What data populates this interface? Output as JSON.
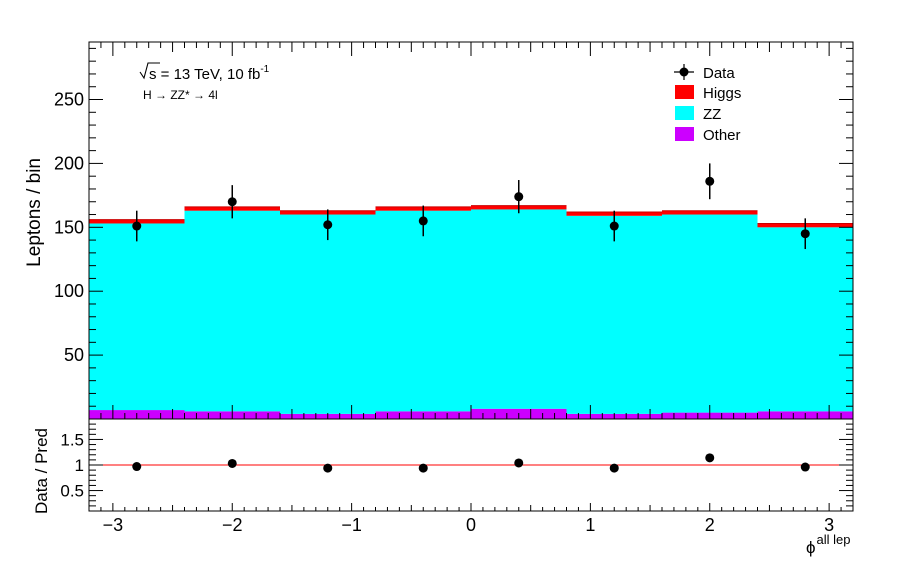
{
  "chart_data": [
    {
      "type": "bar",
      "stacked": true,
      "ylabel": "Leptons / bin",
      "ylim": [
        0,
        295
      ],
      "yticks": [
        50,
        100,
        150,
        200,
        250
      ],
      "xlim": [
        -3.2,
        3.2
      ],
      "bin_edges": [
        -3.2,
        -2.4,
        -1.6,
        -0.8,
        0.0,
        0.8,
        1.6,
        2.4,
        3.2
      ],
      "annotations": {
        "energy_line_prefix": "s",
        "energy_line_main": " = 13 TeV, 10 fb",
        "energy_line_exp": "-1",
        "process": "H → ZZ* → 4l"
      },
      "legend_position": "top-right",
      "series": [
        {
          "name": "Other",
          "color": "#cc00ff",
          "values": [
            7,
            6,
            4,
            6,
            8,
            4,
            5,
            6
          ]
        },
        {
          "name": "ZZ",
          "color": "#00ffff",
          "values": [
            146,
            157,
            156,
            157,
            156,
            155,
            155,
            144
          ]
        },
        {
          "name": "Higgs",
          "color": "#ff0000",
          "values": [
            3,
            3,
            3,
            3,
            3,
            3,
            3,
            3
          ]
        }
      ],
      "data_points": {
        "name": "Data",
        "x": [
          -2.8,
          -2.0,
          -1.2,
          -0.4,
          0.4,
          1.2,
          2.0,
          2.8
        ],
        "y": [
          151,
          170,
          152,
          155,
          174,
          151,
          186,
          145
        ],
        "yerr": [
          12,
          13,
          12,
          12,
          13,
          12,
          14,
          12
        ]
      },
      "legend": [
        "Data",
        "Higgs",
        "ZZ",
        "Other"
      ]
    },
    {
      "type": "scatter",
      "ylabel": "Data / Pred",
      "xlabel_base": "ϕ",
      "xlabel_sup": "all lep",
      "ylim": [
        0.1,
        1.9
      ],
      "yticks": [
        0.5,
        1,
        1.5
      ],
      "reference_line": 1,
      "xticks": [
        -3,
        -2,
        -1,
        0,
        1,
        2,
        3
      ],
      "x": [
        -2.8,
        -2.0,
        -1.2,
        -0.4,
        0.4,
        1.2,
        2.0,
        2.8
      ],
      "y": [
        0.97,
        1.03,
        0.94,
        0.94,
        1.04,
        0.94,
        1.14,
        0.96
      ]
    }
  ]
}
